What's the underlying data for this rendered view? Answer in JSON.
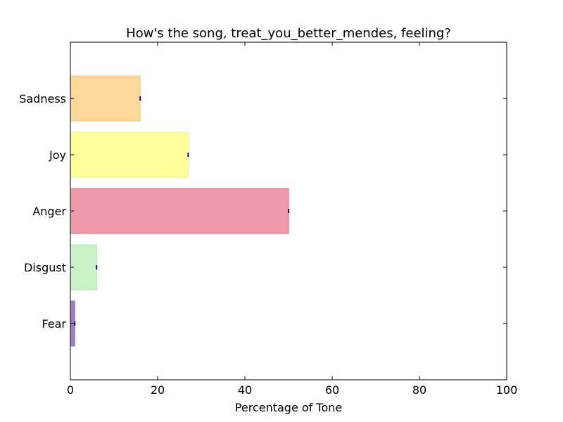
{
  "chart_data": {
    "type": "bar",
    "orientation": "horizontal",
    "title": "How's the song, treat_you_better_mendes, feeling?",
    "xlabel": "Percentage of Tone",
    "ylabel": "",
    "xlim": [
      0,
      100
    ],
    "xticks": [
      0,
      20,
      40,
      60,
      80,
      100
    ],
    "grid": false,
    "categories": [
      "Fear",
      "Disgust",
      "Anger",
      "Joy",
      "Sadness"
    ],
    "values": [
      1,
      6,
      50,
      27,
      16
    ],
    "colors": [
      "#9e7fc4",
      "#c9f2c9",
      "#ee9aa9",
      "#ffff99",
      "#fed79a"
    ],
    "edge_colors": [
      "#8b6bbd",
      "#a8e8a8",
      "#e06c83",
      "#f2f27a",
      "#f6c67c"
    ],
    "errorbar_color": "#0000cc"
  }
}
